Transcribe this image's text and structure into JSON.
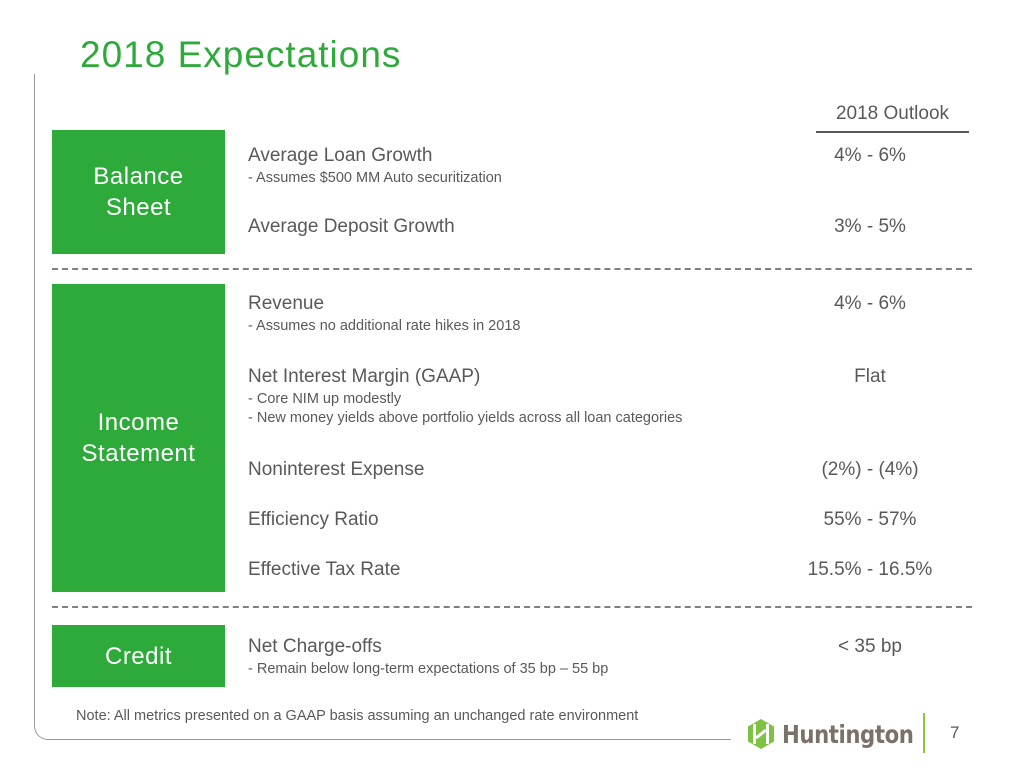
{
  "slide": {
    "title": "2018 Expectations",
    "outlook_header": "2018 Outlook",
    "accent_color": "#2eaa3a",
    "sections": [
      {
        "label_line1": "Balance",
        "label_line2": "Sheet",
        "items": [
          {
            "metric": "Average Loan Growth",
            "notes": [
              "- Assumes $500 MM Auto securitization"
            ],
            "outlook": "4% - 6%"
          },
          {
            "metric": "Average Deposit Growth",
            "notes": [],
            "outlook": "3% - 5%"
          }
        ]
      },
      {
        "label_line1": "Income",
        "label_line2": "Statement",
        "items": [
          {
            "metric": "Revenue",
            "notes": [
              "- Assumes no additional rate hikes in 2018"
            ],
            "outlook": "4% - 6%"
          },
          {
            "metric": "Net Interest Margin (GAAP)",
            "notes": [
              "- Core NIM up modestly",
              "- New money yields above portfolio yields across all loan categories"
            ],
            "outlook": "Flat"
          },
          {
            "metric": "Noninterest Expense",
            "notes": [],
            "outlook": "(2%) - (4%)"
          },
          {
            "metric": "Efficiency Ratio",
            "notes": [],
            "outlook": "55% - 57%"
          },
          {
            "metric": "Effective Tax Rate",
            "notes": [],
            "outlook": "15.5% - 16.5%"
          }
        ]
      },
      {
        "label_line1": "Credit",
        "items": [
          {
            "metric": "Net Charge-offs",
            "notes": [
              "- Remain below long-term expectations of 35 bp – 55 bp"
            ],
            "outlook": "< 35 bp"
          }
        ]
      }
    ],
    "note": "Note: All metrics presented on a GAAP basis assuming an unchanged rate environment"
  },
  "footer": {
    "logo_icon": "huntington-logo-icon",
    "logo_text": "Huntington",
    "page_number": "7"
  }
}
